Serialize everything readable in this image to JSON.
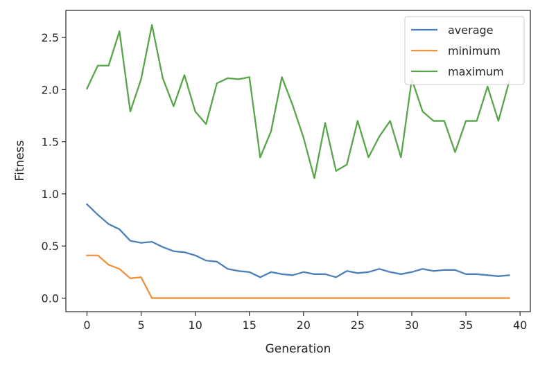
{
  "chart_data": {
    "type": "line",
    "title": "",
    "xlabel": "Generation",
    "ylabel": "Fitness",
    "xlim": [
      -1.95,
      40.95
    ],
    "ylim": [
      -0.13,
      2.76
    ],
    "xticks": [
      0,
      5,
      10,
      15,
      20,
      25,
      30,
      35,
      40
    ],
    "xtick_labels": [
      "0",
      "5",
      "10",
      "15",
      "20",
      "25",
      "30",
      "35",
      "40"
    ],
    "yticks": [
      0.0,
      0.5,
      1.0,
      1.5,
      2.0,
      2.5
    ],
    "ytick_labels": [
      "0.0",
      "0.5",
      "1.0",
      "1.5",
      "2.0",
      "2.5"
    ],
    "grid": false,
    "legend_position": "top-right",
    "x": [
      0,
      1,
      2,
      3,
      4,
      5,
      6,
      7,
      8,
      9,
      10,
      11,
      12,
      13,
      14,
      15,
      16,
      17,
      18,
      19,
      20,
      21,
      22,
      23,
      24,
      25,
      26,
      27,
      28,
      29,
      30,
      31,
      32,
      33,
      34,
      35,
      36,
      37,
      38,
      39
    ],
    "series": [
      {
        "name": "average",
        "color": "#4c7fb8",
        "values": [
          0.9,
          0.8,
          0.71,
          0.66,
          0.55,
          0.53,
          0.54,
          0.49,
          0.45,
          0.44,
          0.41,
          0.36,
          0.35,
          0.28,
          0.26,
          0.25,
          0.2,
          0.25,
          0.23,
          0.22,
          0.25,
          0.23,
          0.23,
          0.2,
          0.26,
          0.24,
          0.25,
          0.28,
          0.25,
          0.23,
          0.25,
          0.28,
          0.26,
          0.27,
          0.27,
          0.23,
          0.23,
          0.22,
          0.21,
          0.22
        ]
      },
      {
        "name": "minimum",
        "color": "#f0913c",
        "values": [
          0.41,
          0.41,
          0.32,
          0.28,
          0.19,
          0.2,
          0.0,
          0.0,
          0.0,
          0.0,
          0.0,
          0.0,
          0.0,
          0.0,
          0.0,
          0.0,
          0.0,
          0.0,
          0.0,
          0.0,
          0.0,
          0.0,
          0.0,
          0.0,
          0.0,
          0.0,
          0.0,
          0.0,
          0.0,
          0.0,
          0.0,
          0.0,
          0.0,
          0.0,
          0.0,
          0.0,
          0.0,
          0.0,
          0.0,
          0.0
        ]
      },
      {
        "name": "maximum",
        "color": "#57a549",
        "values": [
          2.01,
          2.23,
          2.23,
          2.56,
          1.79,
          2.1,
          2.62,
          2.11,
          1.84,
          2.14,
          1.79,
          1.67,
          2.06,
          2.11,
          2.1,
          2.12,
          1.35,
          1.6,
          2.12,
          1.85,
          1.54,
          1.15,
          1.68,
          1.22,
          1.28,
          1.7,
          1.35,
          1.55,
          1.7,
          1.35,
          2.1,
          1.79,
          1.7,
          1.7,
          1.4,
          1.7,
          1.7,
          2.03,
          1.7,
          2.08
        ]
      }
    ]
  }
}
